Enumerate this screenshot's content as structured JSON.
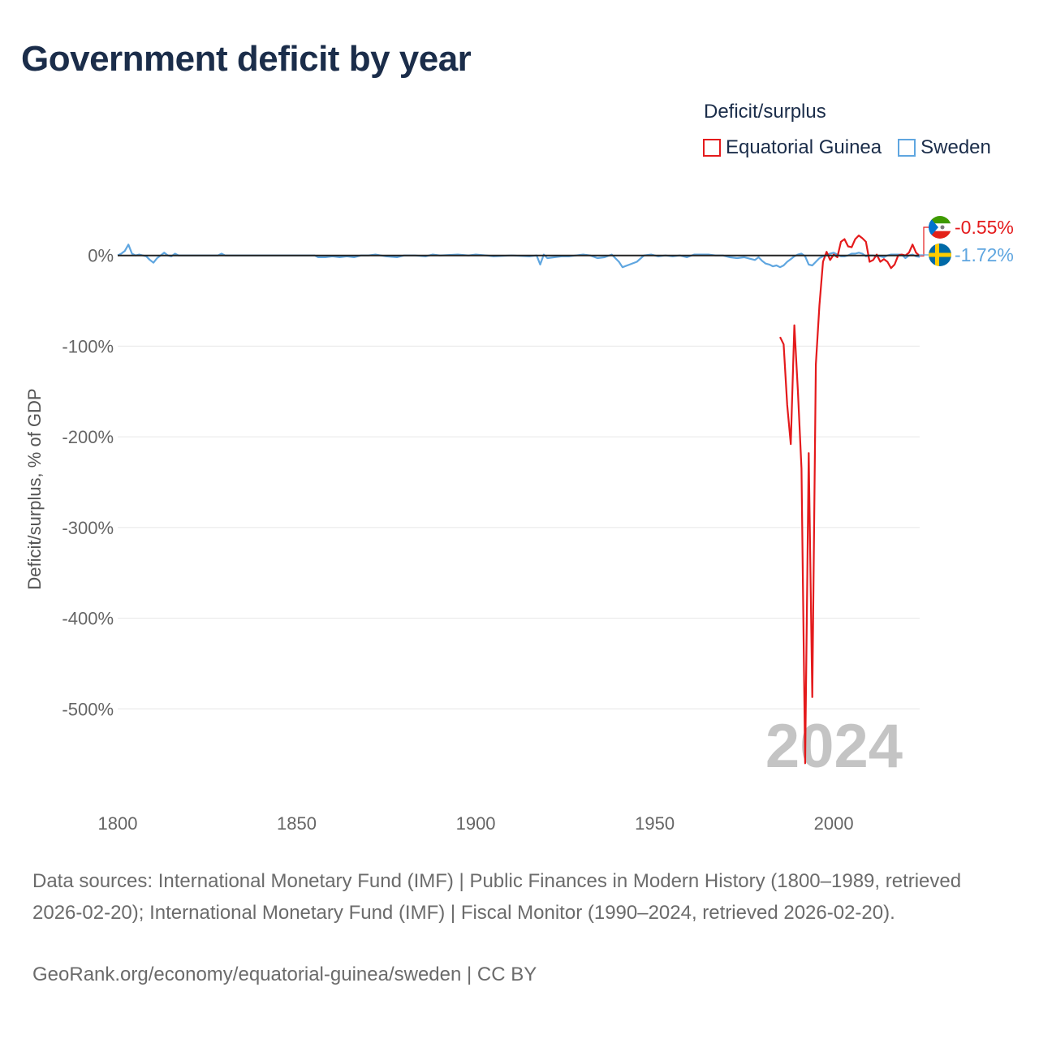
{
  "title": "Government deficit by year",
  "legend": {
    "title": "Deficit/surplus",
    "items": [
      {
        "name": "Equatorial Guinea",
        "color": "#e41a1c"
      },
      {
        "name": "Sweden",
        "color": "#5fa6e0"
      }
    ]
  },
  "footer": {
    "sources": "Data sources: International Monetary Fund (IMF) | Public Finances in Modern History (1800–1989, retrieved 2026-02-20); International Monetary Fund (IMF) | Fiscal Monitor (1990–2024, retrieved 2026-02-20).",
    "credit": "GeoRank.org/economy/equatorial-guinea/sweden | CC BY"
  },
  "chart_data": {
    "type": "line",
    "title": "Government deficit by year",
    "xlabel": "",
    "ylabel": "Deficit/surplus, % of GDP",
    "xlim": [
      1800,
      2024
    ],
    "ylim": [
      -600,
      40
    ],
    "x_ticks": [
      1800,
      1850,
      1900,
      1950,
      2000
    ],
    "y_ticks": [
      0,
      -100,
      -200,
      -300,
      -400,
      -500
    ],
    "y_tick_labels": [
      "0%",
      "-100%",
      "-200%",
      "-300%",
      "-400%",
      "-500%"
    ],
    "grid": true,
    "year_watermark": "2024",
    "end_labels": [
      {
        "series": "Equatorial Guinea",
        "label": "-0.55%"
      },
      {
        "series": "Sweden",
        "label": "-1.72%"
      }
    ],
    "series": [
      {
        "name": "Equatorial Guinea",
        "color": "#e41a1c",
        "points": [
          [
            1985,
            -90
          ],
          [
            1986,
            -98
          ],
          [
            1987,
            -165
          ],
          [
            1988,
            -208
          ],
          [
            1989,
            -77
          ],
          [
            1990,
            -150
          ],
          [
            1991,
            -235
          ],
          [
            1992,
            -560
          ],
          [
            1993,
            -218
          ],
          [
            1994,
            -487
          ],
          [
            1995,
            -120
          ],
          [
            1996,
            -55
          ],
          [
            1997,
            -7
          ],
          [
            1998,
            4
          ],
          [
            1999,
            -5
          ],
          [
            2000,
            1
          ],
          [
            2001,
            -2
          ],
          [
            2002,
            15
          ],
          [
            2003,
            18
          ],
          [
            2004,
            10
          ],
          [
            2005,
            9
          ],
          [
            2006,
            18
          ],
          [
            2007,
            22
          ],
          [
            2008,
            19
          ],
          [
            2009,
            15
          ],
          [
            2010,
            -7
          ],
          [
            2011,
            -5
          ],
          [
            2012,
            1
          ],
          [
            2013,
            -7
          ],
          [
            2014,
            -4
          ],
          [
            2015,
            -7
          ],
          [
            2016,
            -14
          ],
          [
            2017,
            -10
          ],
          [
            2018,
            0
          ],
          [
            2019,
            1
          ],
          [
            2020,
            0
          ],
          [
            2021,
            3
          ],
          [
            2022,
            12
          ],
          [
            2023,
            3
          ],
          [
            2024,
            -0.55
          ]
        ]
      },
      {
        "name": "Sweden",
        "color": "#5fa6e0",
        "points": [
          [
            1800,
            0
          ],
          [
            1801,
            2
          ],
          [
            1802,
            5
          ],
          [
            1803,
            12
          ],
          [
            1804,
            2
          ],
          [
            1805,
            0
          ],
          [
            1806,
            1
          ],
          [
            1807,
            0
          ],
          [
            1808,
            -1
          ],
          [
            1809,
            -5
          ],
          [
            1810,
            -8
          ],
          [
            1811,
            -3
          ],
          [
            1812,
            0
          ],
          [
            1813,
            3
          ],
          [
            1814,
            0
          ],
          [
            1815,
            -1
          ],
          [
            1816,
            2
          ],
          [
            1817,
            0
          ],
          [
            1820,
            0
          ],
          [
            1825,
            0
          ],
          [
            1828,
            0
          ],
          [
            1829,
            2
          ],
          [
            1830,
            0
          ],
          [
            1840,
            0
          ],
          [
            1850,
            0
          ],
          [
            1855,
            0
          ],
          [
            1856,
            -2
          ],
          [
            1858,
            -2
          ],
          [
            1860,
            -1
          ],
          [
            1862,
            -2
          ],
          [
            1864,
            -1
          ],
          [
            1866,
            -2
          ],
          [
            1868,
            0
          ],
          [
            1870,
            0
          ],
          [
            1872,
            1
          ],
          [
            1875,
            -1
          ],
          [
            1878,
            -2
          ],
          [
            1880,
            0
          ],
          [
            1883,
            0
          ],
          [
            1886,
            -1
          ],
          [
            1888,
            1
          ],
          [
            1890,
            0
          ],
          [
            1895,
            1
          ],
          [
            1898,
            0
          ],
          [
            1900,
            1
          ],
          [
            1903,
            0
          ],
          [
            1905,
            -1
          ],
          [
            1910,
            0
          ],
          [
            1915,
            -1
          ],
          [
            1917,
            0
          ],
          [
            1918,
            -10
          ],
          [
            1919,
            1
          ],
          [
            1920,
            -3
          ],
          [
            1922,
            -2
          ],
          [
            1924,
            -1
          ],
          [
            1926,
            -1
          ],
          [
            1928,
            0
          ],
          [
            1930,
            1
          ],
          [
            1932,
            0
          ],
          [
            1934,
            -3
          ],
          [
            1936,
            -2
          ],
          [
            1938,
            1
          ],
          [
            1940,
            -7
          ],
          [
            1941,
            -13
          ],
          [
            1943,
            -10
          ],
          [
            1945,
            -7
          ],
          [
            1947,
            0
          ],
          [
            1949,
            1
          ],
          [
            1951,
            -1
          ],
          [
            1953,
            0
          ],
          [
            1955,
            -1
          ],
          [
            1957,
            0
          ],
          [
            1959,
            -2
          ],
          [
            1961,
            1
          ],
          [
            1963,
            1
          ],
          [
            1965,
            1
          ],
          [
            1967,
            0
          ],
          [
            1969,
            0
          ],
          [
            1971,
            -2
          ],
          [
            1973,
            -3
          ],
          [
            1975,
            -2
          ],
          [
            1977,
            -4
          ],
          [
            1978,
            -5
          ],
          [
            1979,
            -2
          ],
          [
            1980,
            -6
          ],
          [
            1981,
            -9
          ],
          [
            1982,
            -10
          ],
          [
            1983,
            -12
          ],
          [
            1984,
            -11
          ],
          [
            1985,
            -13
          ],
          [
            1986,
            -11
          ],
          [
            1987,
            -7
          ],
          [
            1988,
            -4
          ],
          [
            1989,
            -1
          ],
          [
            1990,
            1
          ],
          [
            1991,
            2
          ],
          [
            1992,
            -1
          ],
          [
            1993,
            -10
          ],
          [
            1994,
            -11
          ],
          [
            1995,
            -7
          ],
          [
            1996,
            -3
          ],
          [
            1997,
            -1
          ],
          [
            1998,
            1
          ],
          [
            1999,
            2
          ],
          [
            2000,
            3
          ],
          [
            2001,
            1
          ],
          [
            2002,
            -1
          ],
          [
            2003,
            -1
          ],
          [
            2004,
            0
          ],
          [
            2005,
            2
          ],
          [
            2006,
            2
          ],
          [
            2007,
            3
          ],
          [
            2008,
            2
          ],
          [
            2009,
            -1
          ],
          [
            2010,
            0
          ],
          [
            2011,
            0
          ],
          [
            2012,
            -1
          ],
          [
            2013,
            -1
          ],
          [
            2014,
            -2
          ],
          [
            2015,
            0
          ],
          [
            2016,
            1
          ],
          [
            2017,
            1
          ],
          [
            2018,
            1
          ],
          [
            2019,
            1
          ],
          [
            2020,
            -3
          ],
          [
            2021,
            0
          ],
          [
            2022,
            1
          ],
          [
            2023,
            -1
          ],
          [
            2024,
            -1.72
          ]
        ]
      }
    ]
  }
}
